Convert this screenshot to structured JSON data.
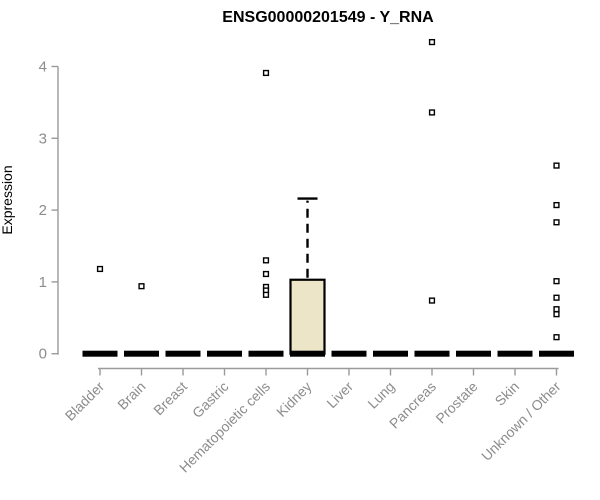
{
  "chart_data": {
    "type": "boxplot",
    "title": "ENSG00000201549 - Y_RNA",
    "ylabel": "Expression",
    "xlabel": "",
    "ylim": [
      0,
      4.45
    ],
    "yticks": [
      0,
      1,
      2,
      3,
      4
    ],
    "grid": false,
    "legend": false,
    "categories": [
      "Bladder",
      "Brain",
      "Breast",
      "Gastric",
      "Hematopoietic cells",
      "Kidney",
      "Liver",
      "Lung",
      "Pancreas",
      "Prostate",
      "Skin",
      "Unknown / Other"
    ],
    "boxes": [
      {
        "category": "Bladder",
        "whisker_low": 0,
        "q1": 0,
        "median": 0,
        "q3": 0,
        "whisker_high": 0,
        "outliers": [
          1.18
        ]
      },
      {
        "category": "Brain",
        "whisker_low": 0,
        "q1": 0,
        "median": 0,
        "q3": 0,
        "whisker_high": 0,
        "outliers": [
          0.94
        ]
      },
      {
        "category": "Breast",
        "whisker_low": 0,
        "q1": 0,
        "median": 0,
        "q3": 0,
        "whisker_high": 0,
        "outliers": []
      },
      {
        "category": "Gastric",
        "whisker_low": 0,
        "q1": 0,
        "median": 0,
        "q3": 0,
        "whisker_high": 0,
        "outliers": []
      },
      {
        "category": "Hematopoietic cells",
        "whisker_low": 0,
        "q1": 0,
        "median": 0,
        "q3": 0,
        "whisker_high": 0,
        "outliers": [
          3.91,
          1.3,
          1.11,
          0.93,
          0.88,
          0.82
        ]
      },
      {
        "category": "Kidney",
        "whisker_low": 0,
        "q1": 0,
        "median": 0,
        "q3": 1.03,
        "whisker_high": 2.16,
        "outliers": []
      },
      {
        "category": "Liver",
        "whisker_low": 0,
        "q1": 0,
        "median": 0,
        "q3": 0,
        "whisker_high": 0,
        "outliers": []
      },
      {
        "category": "Lung",
        "whisker_low": 0,
        "q1": 0,
        "median": 0,
        "q3": 0,
        "whisker_high": 0,
        "outliers": []
      },
      {
        "category": "Pancreas",
        "whisker_low": 0,
        "q1": 0,
        "median": 0,
        "q3": 0,
        "whisker_high": 0,
        "outliers": [
          4.34,
          3.36,
          0.74
        ]
      },
      {
        "category": "Prostate",
        "whisker_low": 0,
        "q1": 0,
        "median": 0,
        "q3": 0,
        "whisker_high": 0,
        "outliers": []
      },
      {
        "category": "Skin",
        "whisker_low": 0,
        "q1": 0,
        "median": 0,
        "q3": 0,
        "whisker_high": 0,
        "outliers": []
      },
      {
        "category": "Unknown / Other",
        "whisker_low": 0,
        "q1": 0,
        "median": 0,
        "q3": 0,
        "whisker_high": 0,
        "outliers": [
          2.62,
          2.07,
          1.83,
          1.01,
          0.78,
          0.62,
          0.55,
          0.23
        ]
      }
    ],
    "colors": {
      "box_fill": "#ECE5C8",
      "box_border": "#000000",
      "median": "#000000",
      "axis_line": "#9a9a9a",
      "tick_text": "#8c8c8c",
      "title_text": "#000000",
      "outlier_stroke": "#000000",
      "outlier_fill": "#ffffff",
      "background": "#ffffff"
    }
  }
}
